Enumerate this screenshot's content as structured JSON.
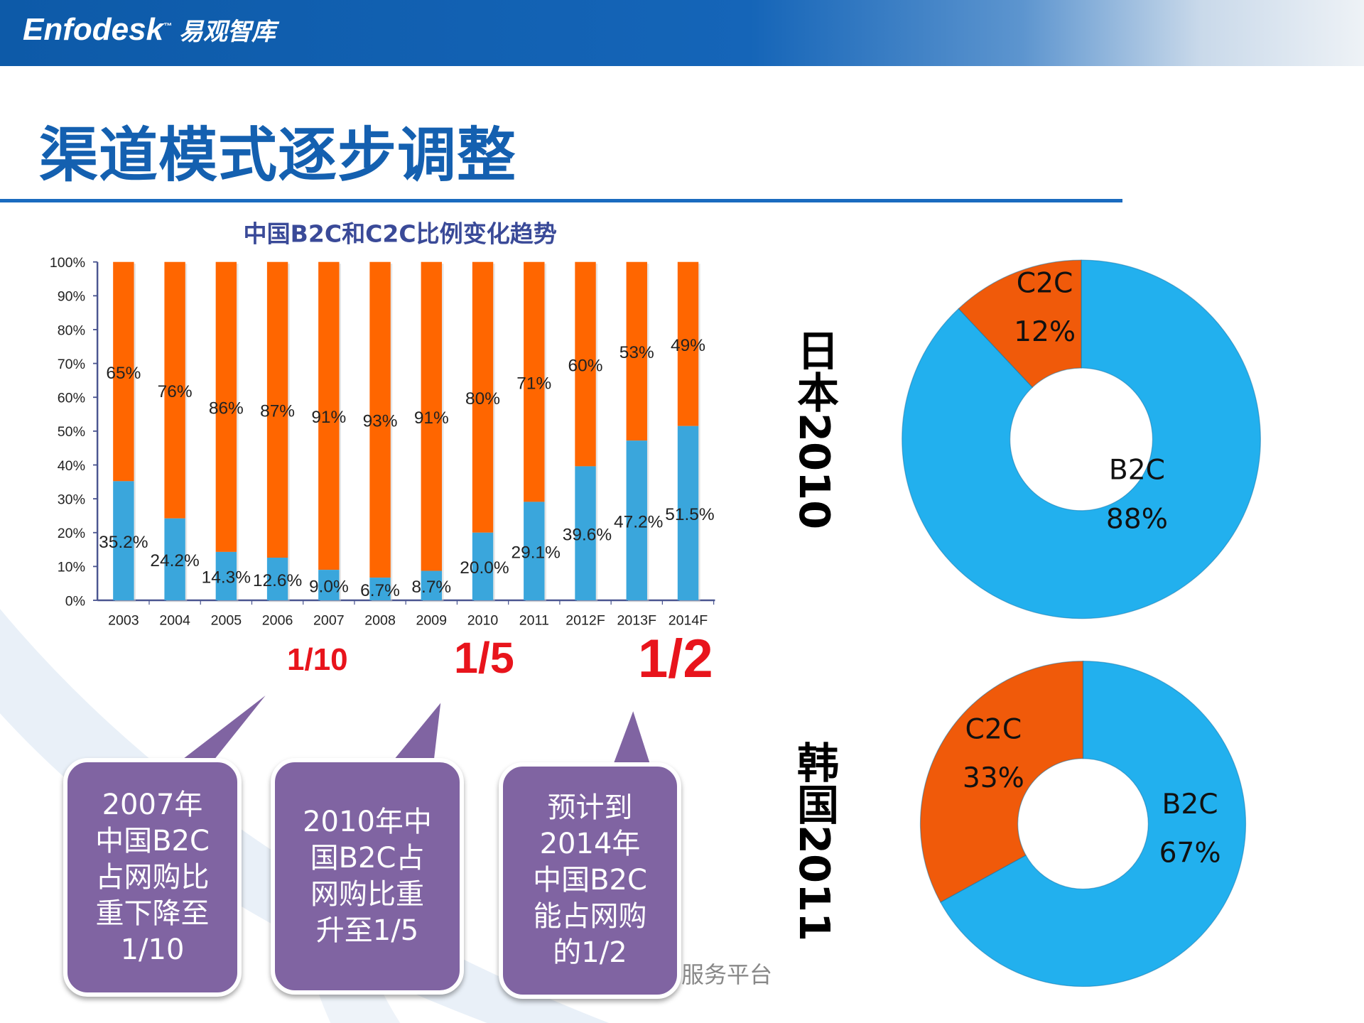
{
  "header": {
    "logo_text": "Enfodesk",
    "logo_tm": "™",
    "logo_cn": "易观智库"
  },
  "page_title": "渠道模式逐步调整",
  "chart_data": {
    "type": "bar",
    "stacked": true,
    "title": "中国B2C和C2C比例变化趋势",
    "categories": [
      "2003",
      "2004",
      "2005",
      "2006",
      "2007",
      "2008",
      "2009",
      "2010",
      "2011",
      "2012F",
      "2013F",
      "2014F"
    ],
    "series": [
      {
        "values": [
          35.2,
          24.2,
          14.3,
          12.6,
          9.0,
          6.7,
          8.7,
          20.0,
          29.1,
          39.6,
          47.2,
          51.5
        ],
        "labels": [
          "35.2%",
          "24.2%",
          "14.3%",
          "12.6%",
          "9.0%",
          "6.7%",
          "8.7%",
          "20.0%",
          "29.1%",
          "39.6%",
          "47.2%",
          "51.5%"
        ],
        "color": "#3aa6dc"
      },
      {
        "values": [
          65,
          76,
          86,
          87,
          91,
          93,
          91,
          80,
          71,
          60,
          53,
          49
        ],
        "labels": [
          "65%",
          "76%",
          "86%",
          "87%",
          "91%",
          "93%",
          "91%",
          "80%",
          "71%",
          "60%",
          "53%",
          "49%"
        ],
        "color": "#ff6600"
      }
    ],
    "yticks": [
      "0%",
      "10%",
      "20%",
      "30%",
      "40%",
      "50%",
      "60%",
      "70%",
      "80%",
      "90%",
      "100%"
    ],
    "ylim": [
      0,
      100
    ],
    "grid": false
  },
  "fractions": [
    "1/10",
    "1/5",
    "1/2"
  ],
  "callouts": [
    "2007年\n中国B2C\n占网购比\n重下降至\n1/10",
    "2010年中\n国B2C占\n网购比重\n升至1/5",
    "预计到\n2014年\n中国B2C\n能占网购\n的1/2"
  ],
  "donuts": [
    {
      "label": "日本2010",
      "slices": [
        {
          "name": "B2C",
          "value": 88,
          "text": "88%",
          "color": "#22b0ee"
        },
        {
          "name": "C2C",
          "value": 12,
          "text": "12%",
          "color": "#f05a0a"
        }
      ]
    },
    {
      "label": "韩国2011",
      "slices": [
        {
          "name": "B2C",
          "value": 67,
          "text": "67%",
          "color": "#22b0ee"
        },
        {
          "name": "C2C",
          "value": 33,
          "text": "33%",
          "color": "#f05a0a"
        }
      ]
    }
  ],
  "footer_text": "服务平台"
}
